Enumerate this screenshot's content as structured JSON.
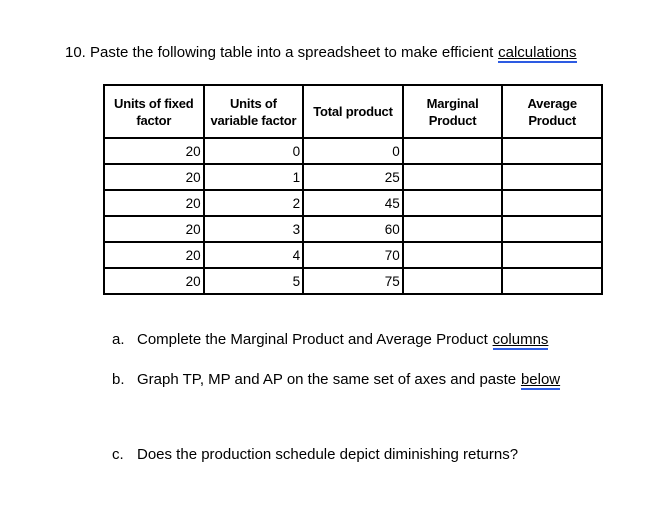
{
  "question": {
    "title_text": "10. Paste the following table into a spreadsheet to make efficient",
    "title_link": "calculations"
  },
  "table": {
    "headers": [
      "Units of fixed\nfactor",
      "Units of\nvariable factor",
      "Total product",
      "Marginal\nProduct",
      "Average\nProduct"
    ],
    "rows": [
      [
        "20",
        "0",
        "0",
        "",
        ""
      ],
      [
        "20",
        "1",
        "25",
        "",
        ""
      ],
      [
        "20",
        "2",
        "45",
        "",
        ""
      ],
      [
        "20",
        "3",
        "60",
        "",
        ""
      ],
      [
        "20",
        "4",
        "70",
        "",
        ""
      ],
      [
        "20",
        "5",
        "75",
        "",
        ""
      ]
    ]
  },
  "items": [
    {
      "marker": "a.",
      "text": "Complete the Marginal Product and Average Product",
      "link": "columns"
    },
    {
      "marker": "b.",
      "text": "Graph TP, MP and AP on the same set of axes and paste",
      "link": "below"
    },
    {
      "marker": "c.",
      "text": "Does the production schedule depict diminishing returns?",
      "link": ""
    }
  ],
  "colors": {
    "text": "#000000",
    "link_underline": "#2d5be2",
    "background": "#ffffff",
    "table_border": "#000000"
  }
}
